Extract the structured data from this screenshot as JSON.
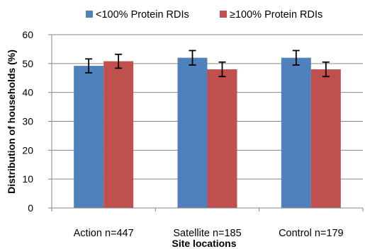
{
  "chart_data": {
    "type": "bar",
    "categories": [
      "Action n=447",
      "Satellite n=185",
      "Control n=179"
    ],
    "series": [
      {
        "name": "<100% Protein RDIs",
        "color": "#4F81BD",
        "values": [
          49.2,
          52.0,
          52.0
        ],
        "errors": [
          2.4,
          2.5,
          2.5
        ]
      },
      {
        "name": "≥100% Protein RDIs",
        "color": "#C0504D",
        "values": [
          50.8,
          48.0,
          48.0
        ],
        "errors": [
          2.4,
          2.5,
          2.5
        ]
      }
    ],
    "title": "",
    "xlabel": "Site locations",
    "ylabel": "Distribution of households (%)",
    "ylim": [
      0,
      60
    ],
    "yticks": [
      0,
      10,
      20,
      30,
      40,
      50,
      60
    ],
    "grid": true,
    "legend_position": "top"
  }
}
